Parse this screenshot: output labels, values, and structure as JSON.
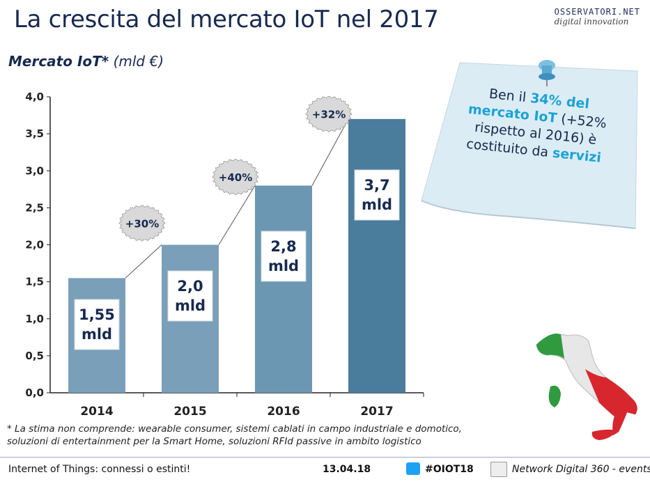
{
  "header": {
    "title": "La crescita del mercato IoT nel 2017",
    "logo_brand": "OSSERVATORI.NET",
    "logo_sub": "digital innovation"
  },
  "subtitle": {
    "bold": "Mercato IoT*",
    "unit": "(mld €)"
  },
  "chart_data": {
    "type": "bar",
    "categories": [
      "2014",
      "2015",
      "2016",
      "2017"
    ],
    "values": [
      1.55,
      2.0,
      2.8,
      3.7
    ],
    "bar_labels": [
      "1,55\nmld",
      "2,0\nmld",
      "2,8\nmld",
      "3,7\nmld"
    ],
    "growth_labels": [
      "+30%",
      "+40%",
      "+32%"
    ],
    "ylim": [
      0,
      4.0
    ],
    "yticks": [
      "0,0",
      "0,5",
      "1,0",
      "1,5",
      "2,0",
      "2,5",
      "3,0",
      "3,5",
      "4,0"
    ],
    "bar_colors": [
      "#7aa0b9",
      "#7aa0b9",
      "#6b97b2",
      "#4a7c9c"
    ],
    "grid": false
  },
  "note": {
    "line1_pre": "Ben il ",
    "line1_hl": "34% del mercato IoT",
    "line2": "(+52% rispetto al 2016) è costituito da ",
    "line2_hl": "servizi"
  },
  "footnote": "* La stima non comprende: wearable consumer, sistemi cablati in campo industriale e domotico, soluzioni di entertainment per la Smart Home, soluzioni RFId passive in ambito logistico",
  "footer": {
    "left": "Internet of Things: connessi o estinti!",
    "date": "13.04.18",
    "hashtag": "#OIOT18",
    "right": "Network Digital 360 - events"
  }
}
